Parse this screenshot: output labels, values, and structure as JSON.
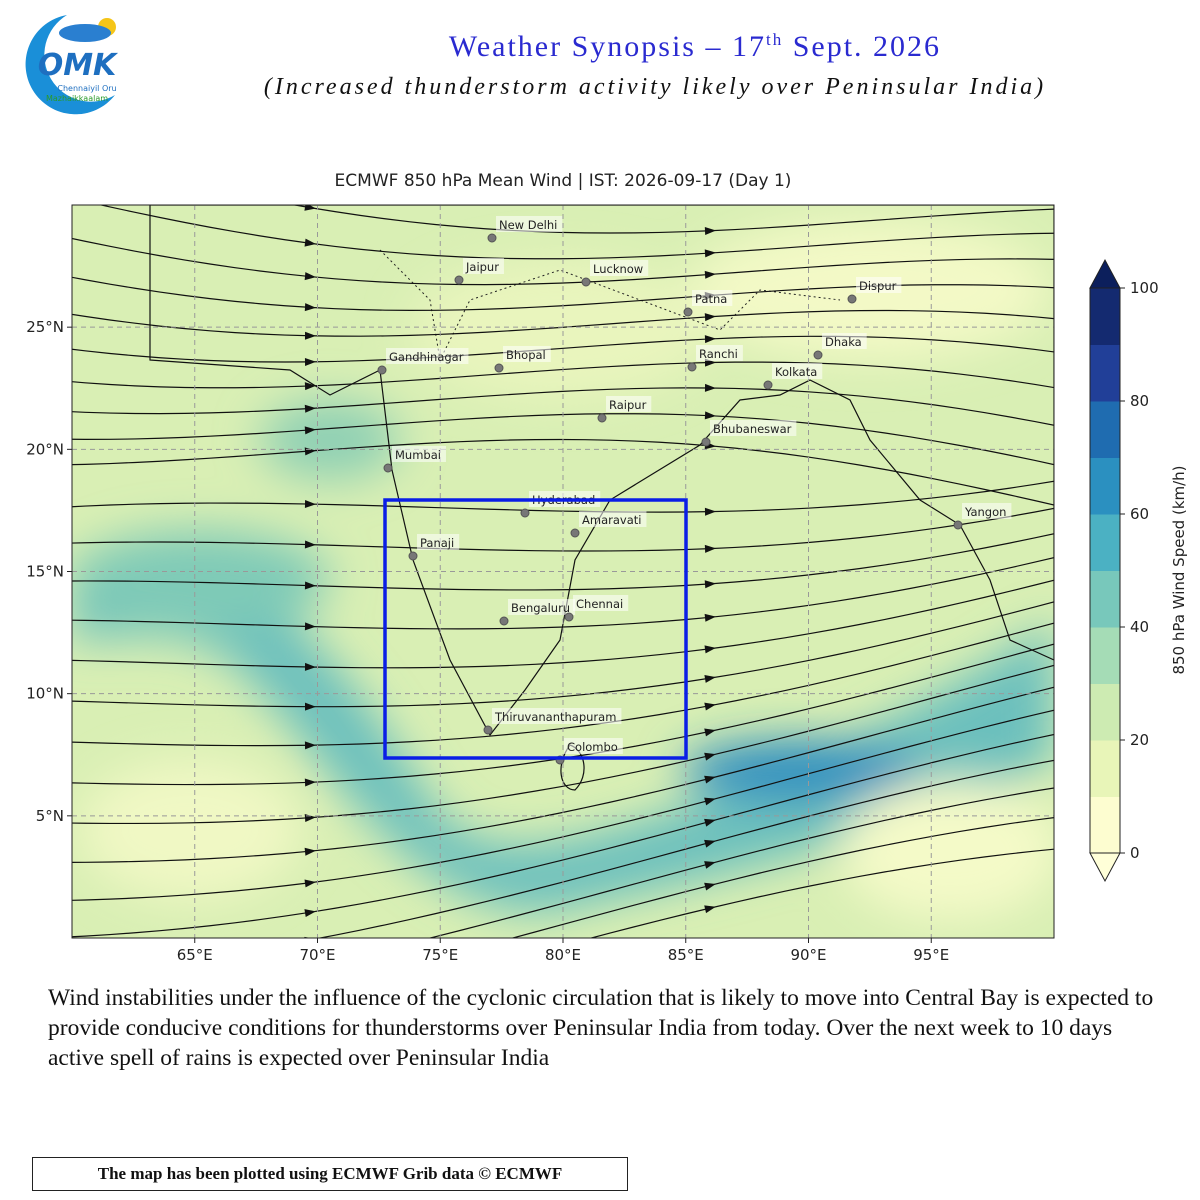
{
  "header": {
    "logo": {
      "mark": "OMK",
      "line1": "Chennaiyil Oru",
      "line2": "Mazhaikkaalam"
    },
    "title_main": "Weather Synopsis – 17",
    "title_sup": "th",
    "title_end": " Sept. 2026",
    "subtitle": "(Increased thunderstorm activity likely over Peninsular India)"
  },
  "map": {
    "title": "ECMWF 850 hPa Mean Wind | IST: 2026-09-17 (Day 1)",
    "lon_range": [
      60,
      100
    ],
    "lat_range": [
      0,
      30
    ],
    "lon_ticks": [
      {
        "value": 65,
        "label": "65°E"
      },
      {
        "value": 70,
        "label": "70°E"
      },
      {
        "value": 75,
        "label": "75°E"
      },
      {
        "value": 80,
        "label": "80°E"
      },
      {
        "value": 85,
        "label": "85°E"
      },
      {
        "value": 90,
        "label": "90°E"
      },
      {
        "value": 95,
        "label": "95°E"
      }
    ],
    "lat_ticks": [
      {
        "value": 25,
        "label": "25°N"
      },
      {
        "value": 20,
        "label": "20°N"
      },
      {
        "value": 15,
        "label": "15°N"
      },
      {
        "value": 10,
        "label": "10°N"
      },
      {
        "value": 5,
        "label": "5°N"
      }
    ],
    "cities": [
      "New Delhi",
      "Jaipur",
      "Lucknow",
      "Patna",
      "Dispur",
      "Gandhinagar",
      "Bhopal",
      "Ranchi",
      "Dhaka",
      "Kolkata",
      "Raipur",
      "Bhubaneswar",
      "Mumbai",
      "Hyderabad",
      "Amaravati",
      "Yangon",
      "Panaji",
      "Bengaluru",
      "Chennai",
      "Thiruvananthapuram",
      "Colombo"
    ]
  },
  "colorbar": {
    "label": "850 hPa Wind Speed (km/h)",
    "range": [
      0,
      100
    ],
    "ticks": [
      0,
      20,
      40,
      60,
      80,
      100
    ]
  },
  "body": "Wind instabilities under the influence of the cyclonic circulation that is likely to move into Central Bay is expected to provide conducive conditions for thunderstorms over Peninsular India from today. Over the next week to 10 days active spell of rains is expected over Peninsular India",
  "footer": "The map has been plotted using ECMWF Grib data © ECMWF"
}
